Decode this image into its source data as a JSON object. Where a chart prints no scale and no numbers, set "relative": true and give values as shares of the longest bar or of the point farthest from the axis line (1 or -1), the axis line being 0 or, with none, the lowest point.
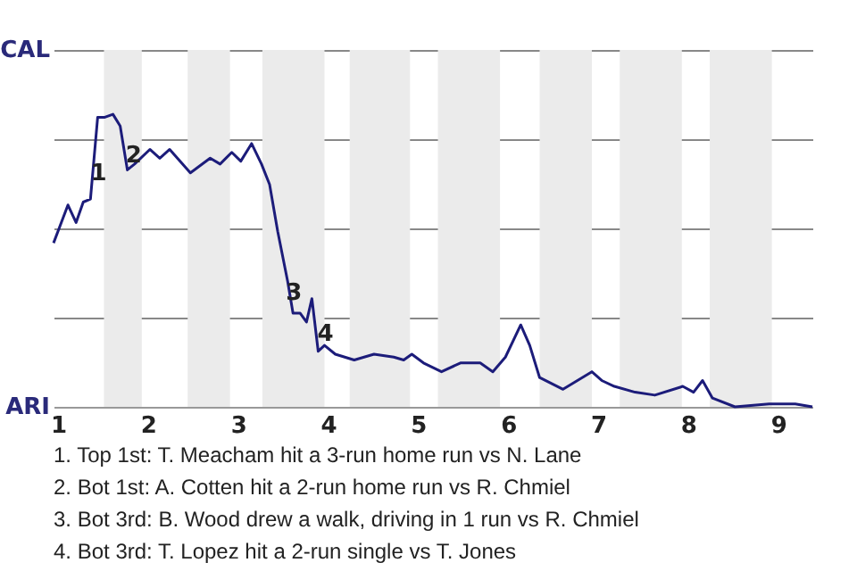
{
  "chart_data": {
    "type": "line",
    "relative": true,
    "x": [
      0.95,
      1.11,
      1.2,
      1.28,
      1.36,
      1.44,
      1.52,
      1.61,
      1.69,
      1.77,
      1.85,
      2.02,
      2.13,
      2.24,
      2.47,
      2.69,
      2.8,
      2.93,
      3.03,
      3.15,
      3.26,
      3.35,
      3.44,
      3.55,
      3.61,
      3.69,
      3.76,
      3.82,
      3.89,
      3.96,
      4.08,
      4.29,
      4.51,
      4.73,
      4.84,
      4.93,
      5.06,
      5.26,
      5.47,
      5.69,
      5.83,
      5.97,
      6.14,
      6.24,
      6.35,
      6.61,
      6.93,
      7.04,
      7.18,
      7.41,
      7.63,
      7.94,
      8.06,
      8.16,
      8.27,
      8.52,
      8.9,
      9.08,
      9.19,
      9.38
    ],
    "series": [
      {
        "color": "#1c1c7a",
        "values": [
          0.56,
          0.69,
          0.63,
          0.7,
          0.71,
          0.99,
          0.99,
          1,
          0.96,
          0.81,
          0.83,
          0.88,
          0.85,
          0.88,
          0.8,
          0.85,
          0.83,
          0.87,
          0.84,
          0.9,
          0.83,
          0.76,
          0.6,
          0.43,
          0.32,
          0.32,
          0.29,
          0.37,
          0.19,
          0.21,
          0.18,
          0.16,
          0.18,
          0.17,
          0.16,
          0.18,
          0.15,
          0.12,
          0.15,
          0.15,
          0.12,
          0.17,
          0.28,
          0.21,
          0.1,
          0.06,
          0.12,
          0.09,
          0.07,
          0.05,
          0.04,
          0.07,
          0.05,
          0.09,
          0.03,
          0,
          0.01,
          0.01,
          0.01,
          0
        ]
      }
    ],
    "xlim": [
      0.95,
      9.38
    ],
    "xticks": [
      1,
      2,
      3,
      4,
      5,
      6,
      7,
      8,
      9
    ],
    "grid": "y",
    "bands": [
      {
        "axis": "x",
        "from": 1.51,
        "to": 1.93,
        "color": "#ebebeb"
      },
      {
        "axis": "x",
        "from": 2.44,
        "to": 2.91,
        "color": "#ebebeb"
      },
      {
        "axis": "x",
        "from": 3.27,
        "to": 3.96,
        "color": "#ebebeb"
      },
      {
        "axis": "x",
        "from": 4.24,
        "to": 4.91,
        "color": "#ebebeb"
      },
      {
        "axis": "x",
        "from": 5.22,
        "to": 5.91,
        "color": "#ebebeb"
      },
      {
        "axis": "x",
        "from": 6.35,
        "to": 6.93,
        "color": "#ebebeb"
      },
      {
        "axis": "x",
        "from": 7.24,
        "to": 7.93,
        "color": "#ebebeb"
      },
      {
        "axis": "x",
        "from": 8.24,
        "to": 8.93,
        "color": "#ebebeb"
      }
    ],
    "annotations": [
      "CAL",
      "ARI",
      {
        "text": "1",
        "x": 1.45,
        "y": 0.8
      },
      {
        "text": "2",
        "x": 1.84,
        "y": 0.86
      },
      {
        "text": "3",
        "x": 3.62,
        "y": 0.39
      },
      {
        "text": "4",
        "x": 3.97,
        "y": 0.25
      },
      "1. Top 1st: T. Meacham hit a 3-run home run vs N. Lane",
      "2. Bot 1st: A. Cotten hit a 2-run home run vs R. Chmiel",
      "3. Bot 3rd: B. Wood drew a walk, driving in 1 run vs R. Chmiel",
      "4. Bot 3rd: T. Lopez hit a 2-run single vs T. Jones"
    ]
  }
}
